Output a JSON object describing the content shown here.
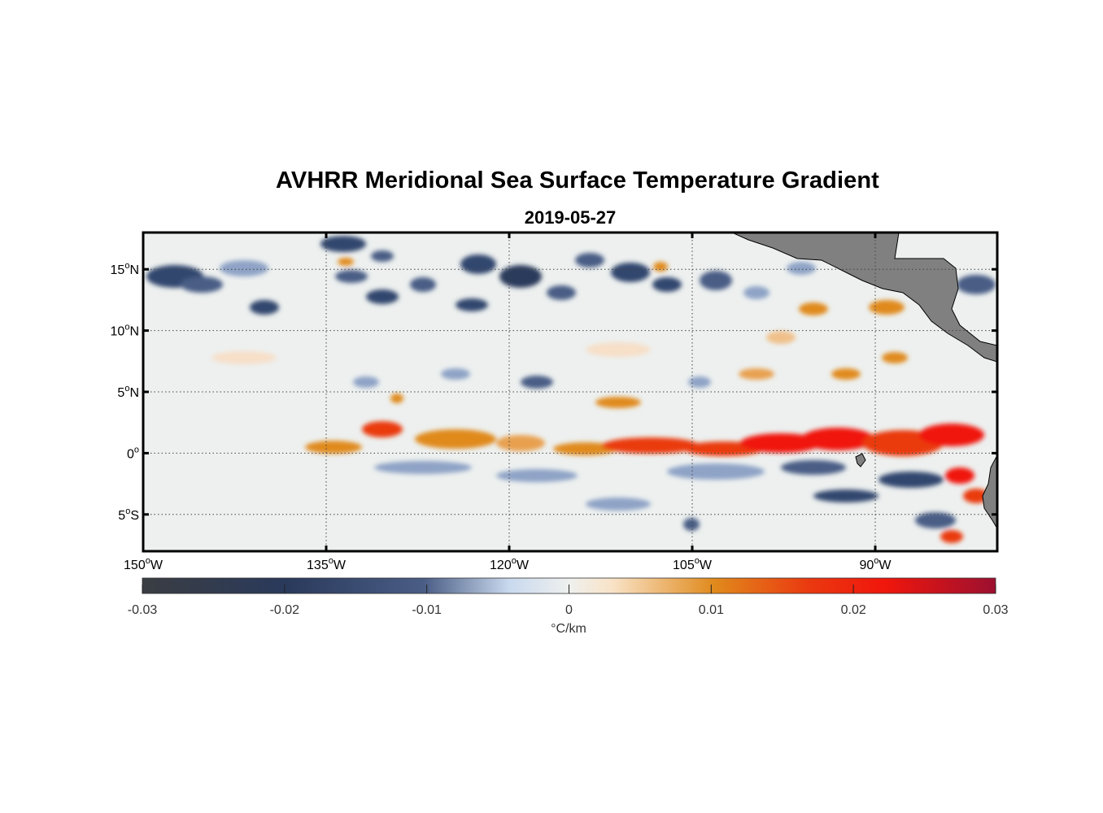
{
  "title": "AVHRR Meridional Sea Surface Temperature Gradient",
  "date": "2019-05-27",
  "map": {
    "lon_range": [
      -150,
      -80
    ],
    "lat_range": [
      -8,
      18
    ],
    "lon_ticks": [
      {
        "value": -150,
        "num": "150",
        "hemi": "W"
      },
      {
        "value": -135,
        "num": "135",
        "hemi": "W"
      },
      {
        "value": -120,
        "num": "120",
        "hemi": "W"
      },
      {
        "value": -105,
        "num": "105",
        "hemi": "W"
      },
      {
        "value": -90,
        "num": "90",
        "hemi": "W"
      }
    ],
    "lat_ticks": [
      {
        "value": 15,
        "num": "15",
        "hemi": "N"
      },
      {
        "value": 10,
        "num": "10",
        "hemi": "N"
      },
      {
        "value": 5,
        "num": "5",
        "hemi": "N"
      },
      {
        "value": 0,
        "num": "0",
        "hemi": ""
      },
      {
        "value": -5,
        "num": "5",
        "hemi": "S"
      }
    ],
    "degree_symbol": "o",
    "land_color": "#808080",
    "grid": "dotted"
  },
  "colorbar": {
    "range": [
      -0.03,
      0.03
    ],
    "tick_values": [
      -0.03,
      -0.02,
      -0.01,
      0,
      0.01,
      0.02,
      0.03
    ],
    "tick_labels": [
      "-0.03",
      "-0.02",
      "-0.01",
      "0",
      "0.01",
      "0.02",
      "0.03"
    ],
    "label": "°C/km",
    "colors": [
      "#3a3d42",
      "#2a3a5c",
      "#4a5d85",
      "#c9d9ee",
      "#eef0ee",
      "#f9e3c8",
      "#e08a1c",
      "#ea3a10",
      "#f0160c",
      "#9c1030"
    ]
  }
}
